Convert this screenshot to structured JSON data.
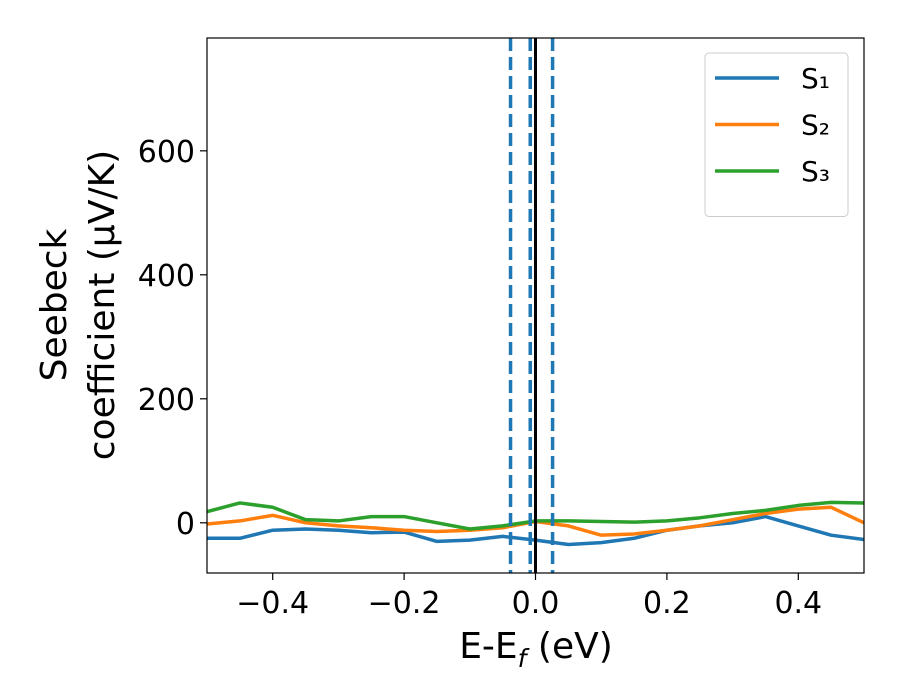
{
  "chart_data": {
    "type": "line",
    "xlabel": [
      "E-E",
      "f",
      " (eV)"
    ],
    "ylabel": [
      "Seebeck",
      "coefficient  (μV/K)"
    ],
    "x": [
      -0.5,
      -0.45,
      -0.4,
      -0.35,
      -0.3,
      -0.25,
      -0.2,
      -0.15,
      -0.1,
      -0.05,
      0,
      0.05,
      0.1,
      0.15,
      0.2,
      0.25,
      0.3,
      0.35,
      0.4,
      0.45,
      0.5
    ],
    "series": [
      {
        "name": "S₁",
        "color": "#1f77b4",
        "values": [
          -25,
          -25,
          -12,
          -10,
          -12,
          -16,
          -15,
          -30,
          -28,
          -22,
          -28,
          -35,
          -32,
          -25,
          -12,
          -5,
          0,
          10,
          -5,
          -20,
          -27
        ]
      },
      {
        "name": "S₂",
        "color": "#ff7f0e",
        "values": [
          -2,
          3,
          12,
          0,
          -5,
          -8,
          -12,
          -14,
          -12,
          -8,
          2,
          -5,
          -20,
          -18,
          -12,
          -5,
          5,
          15,
          22,
          25,
          0
        ]
      },
      {
        "name": "S₃",
        "color": "#2ca02c",
        "values": [
          18,
          32,
          25,
          5,
          3,
          10,
          10,
          0,
          -10,
          -5,
          3,
          3,
          2,
          1,
          3,
          8,
          15,
          20,
          28,
          33,
          32
        ]
      }
    ],
    "vlines": [
      {
        "x": -0.038,
        "color": "#1f77b4",
        "dashed": true
      },
      {
        "x": -0.008,
        "color": "#1f77b4",
        "dashed": true
      },
      {
        "x": 0.026,
        "color": "#1f77b4",
        "dashed": true
      },
      {
        "x": 0,
        "color": "#000000",
        "dashed": false
      }
    ],
    "xlim": [
      -0.5,
      0.5
    ],
    "xticks": [
      {
        "value": -0.4,
        "label": "−0.4"
      },
      {
        "value": -0.2,
        "label": "−0.2"
      },
      {
        "value": 0,
        "label": "0.0"
      },
      0.2,
      0.4
    ],
    "ylim": [
      -81,
      782
    ],
    "yticks": [
      0,
      200,
      400,
      600
    ],
    "legend": "upper right"
  }
}
